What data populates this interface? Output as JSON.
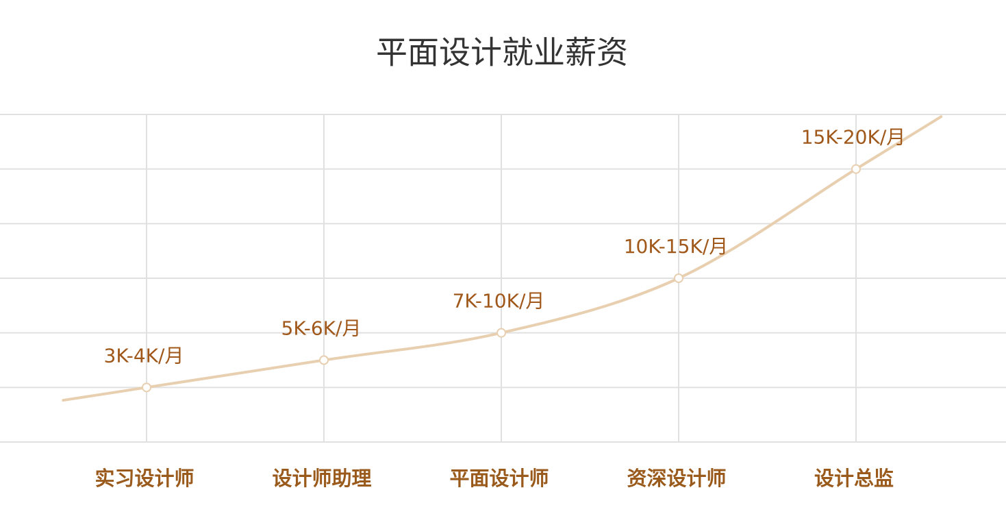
{
  "chart_data": {
    "type": "line",
    "title": "平面设计就业薪资",
    "categories": [
      "实习设计师",
      "设计师助理",
      "平面设计师",
      "资深设计师",
      "设计总监"
    ],
    "values": [
      1,
      1.5,
      2,
      3,
      5
    ],
    "value_labels": [
      "3K-4K/月",
      "5K-6K/月",
      "7K-10K/月",
      "10K-15K/月",
      "15K-20K/月"
    ],
    "color": "#e8cfb0",
    "label_color": "#a0581a",
    "ylim": [
      0,
      6
    ],
    "yticks": [
      0,
      1,
      2,
      3,
      4,
      5,
      6
    ],
    "grid": true
  }
}
